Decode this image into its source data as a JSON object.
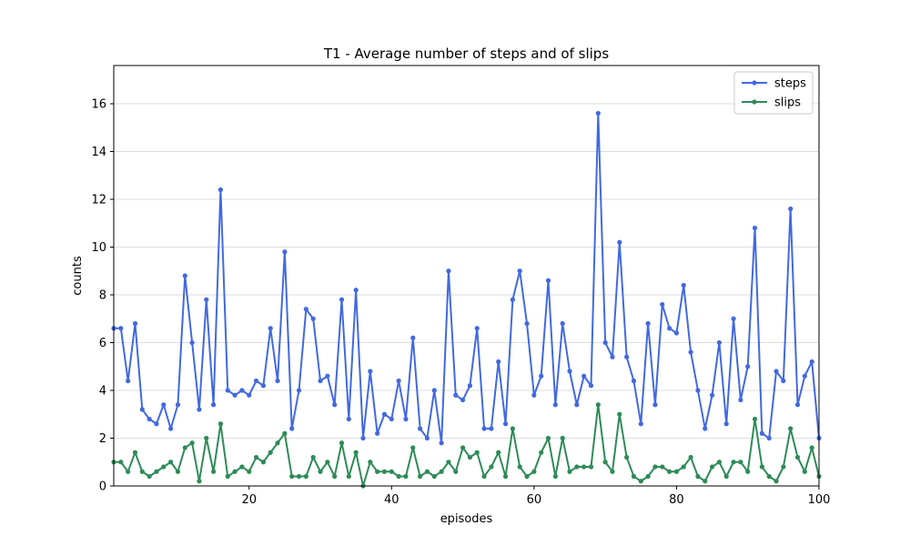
{
  "chart_data": {
    "type": "line",
    "title": "T1 - Average number of steps and of slips",
    "xlabel": "episodes",
    "ylabel": "counts",
    "xlim": [
      1,
      100
    ],
    "ylim": [
      0,
      17.6
    ],
    "xticks": [
      20,
      40,
      60,
      80,
      100
    ],
    "yticks": [
      0,
      2,
      4,
      6,
      8,
      10,
      12,
      14,
      16
    ],
    "grid": "horizontal",
    "legend_position": "top-right",
    "x": [
      1,
      2,
      3,
      4,
      5,
      6,
      7,
      8,
      9,
      10,
      11,
      12,
      13,
      14,
      15,
      16,
      17,
      18,
      19,
      20,
      21,
      22,
      23,
      24,
      25,
      26,
      27,
      28,
      29,
      30,
      31,
      32,
      33,
      34,
      35,
      36,
      37,
      38,
      39,
      40,
      41,
      42,
      43,
      44,
      45,
      46,
      47,
      48,
      49,
      50,
      51,
      52,
      53,
      54,
      55,
      56,
      57,
      58,
      59,
      60,
      61,
      62,
      63,
      64,
      65,
      66,
      67,
      68,
      69,
      70,
      71,
      72,
      73,
      74,
      75,
      76,
      77,
      78,
      79,
      80,
      81,
      82,
      83,
      84,
      85,
      86,
      87,
      88,
      89,
      90,
      91,
      92,
      93,
      94,
      95,
      96,
      97,
      98,
      99,
      100
    ],
    "series": [
      {
        "name": "steps",
        "color": "#4169e1",
        "values": [
          6.6,
          6.6,
          4.4,
          6.8,
          3.2,
          2.8,
          2.6,
          3.4,
          2.4,
          3.4,
          8.8,
          6.0,
          3.2,
          7.8,
          3.4,
          12.4,
          4.0,
          3.8,
          4.0,
          3.8,
          4.4,
          4.2,
          6.6,
          4.4,
          9.8,
          2.4,
          4.0,
          7.4,
          7.0,
          4.4,
          4.6,
          3.4,
          7.8,
          2.8,
          8.2,
          2.0,
          4.8,
          2.2,
          3.0,
          2.8,
          4.4,
          2.8,
          6.2,
          2.4,
          2.0,
          4.0,
          1.8,
          9.0,
          3.8,
          3.6,
          4.2,
          6.6,
          2.4,
          2.4,
          5.2,
          2.6,
          7.8,
          9.0,
          6.8,
          3.8,
          4.6,
          8.6,
          3.4,
          6.8,
          4.8,
          3.4,
          4.6,
          4.2,
          15.6,
          6.0,
          5.4,
          10.2,
          5.4,
          4.4,
          2.6,
          6.8,
          3.4,
          7.6,
          6.6,
          6.4,
          8.4,
          5.6,
          4.0,
          2.4,
          3.8,
          6.0,
          2.6,
          7.0,
          3.6,
          5.0,
          10.8,
          2.2,
          2.0,
          4.8,
          4.4,
          11.6,
          3.4,
          4.6,
          5.2,
          2.0
        ]
      },
      {
        "name": "slips",
        "color": "#2e8b57",
        "values": [
          1.0,
          1.0,
          0.6,
          1.4,
          0.6,
          0.4,
          0.6,
          0.8,
          1.0,
          0.6,
          1.6,
          1.8,
          0.2,
          2.0,
          0.6,
          2.6,
          0.4,
          0.6,
          0.8,
          0.6,
          1.2,
          1.0,
          1.4,
          1.8,
          2.2,
          0.4,
          0.4,
          0.4,
          1.2,
          0.6,
          1.0,
          0.4,
          1.8,
          0.4,
          1.4,
          0.0,
          1.0,
          0.6,
          0.6,
          0.6,
          0.4,
          0.4,
          1.6,
          0.4,
          0.6,
          0.4,
          0.6,
          1.0,
          0.6,
          1.6,
          1.2,
          1.4,
          0.4,
          0.8,
          1.4,
          0.4,
          2.4,
          0.8,
          0.4,
          0.6,
          1.4,
          2.0,
          0.4,
          2.0,
          0.6,
          0.8,
          0.8,
          0.8,
          3.4,
          1.0,
          0.6,
          3.0,
          1.2,
          0.4,
          0.2,
          0.4,
          0.8,
          0.8,
          0.6,
          0.6,
          0.8,
          1.2,
          0.4,
          0.2,
          0.8,
          1.0,
          0.4,
          1.0,
          1.0,
          0.6,
          2.8,
          0.8,
          0.4,
          0.2,
          0.8,
          2.4,
          1.2,
          0.6,
          1.6,
          0.4
        ]
      }
    ]
  }
}
